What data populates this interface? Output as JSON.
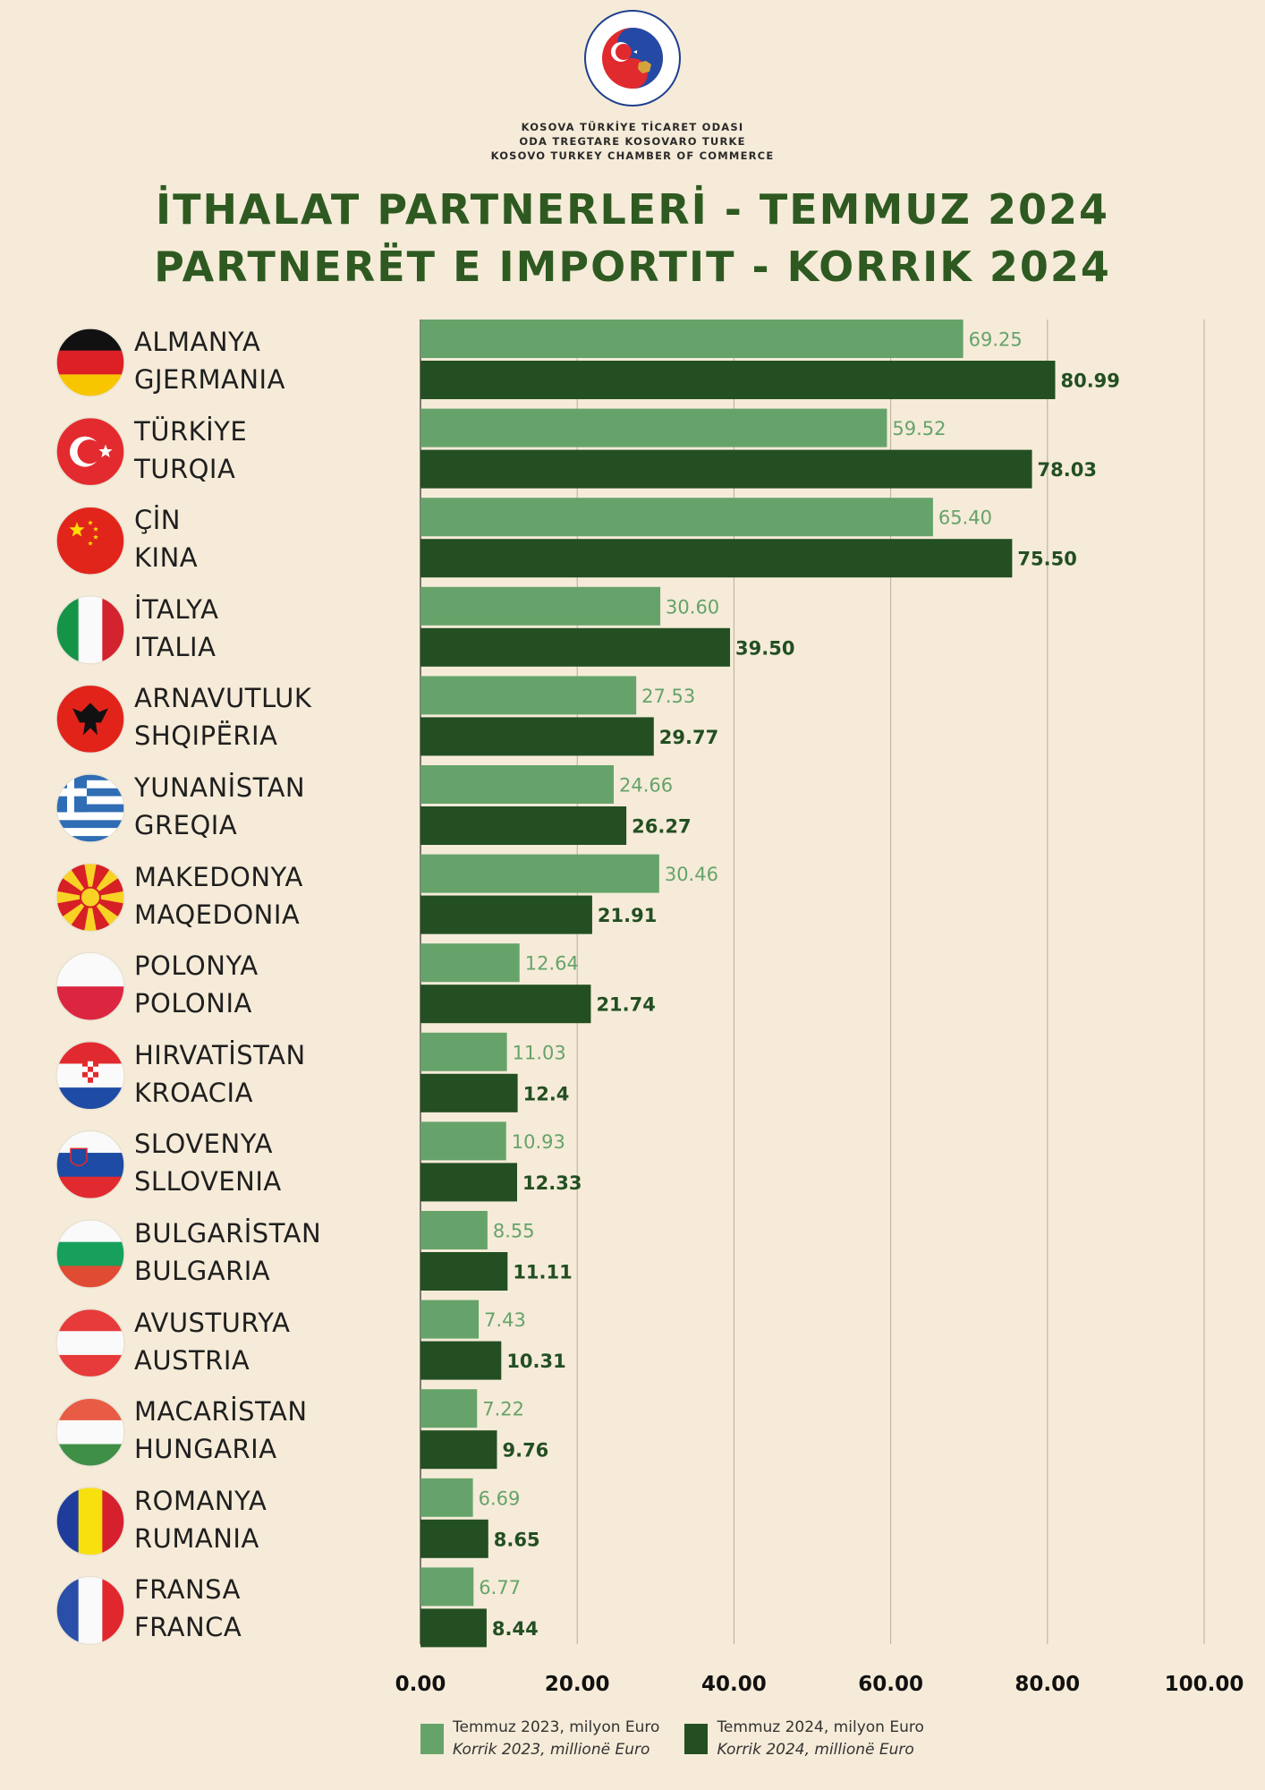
{
  "header": {
    "org_lines": [
      "KOSOVA TÜRKİYE TİCARET ODASI",
      "ODA TREGTARE KOSOVARO TURKE",
      "KOSOVO TURKEY CHAMBER OF COMMERCE"
    ],
    "logo_ring_text": "ODA TREGTARE KOSOVARO TURKE ★ KOSOVA TÜRKİYE TİCARET ODASI",
    "title_line1": "İTHALAT PARTNERLERİ - TEMMUZ 2024",
    "title_line2": "PARTNERËT E IMPORTIT - KORRIK 2024"
  },
  "chart_data": {
    "type": "bar",
    "orientation": "horizontal",
    "categories": [
      [
        "ALMANYA",
        "GJERMANIA"
      ],
      [
        "TÜRKİYE",
        "TURQIA"
      ],
      [
        "ÇİN",
        "KINA"
      ],
      [
        "İTALYA",
        "ITALIA"
      ],
      [
        "ARNAVUTLUK",
        "SHQIPËRIA"
      ],
      [
        "YUNANİSTAN",
        "GREQIA"
      ],
      [
        "MAKEDONYA",
        "MAQEDONIA"
      ],
      [
        "POLONYA",
        "POLONIA"
      ],
      [
        "HIRVATİSTAN",
        "KROACIA"
      ],
      [
        "SLOVENYA",
        "SLLOVENIA"
      ],
      [
        "BULGARİSTAN",
        "BULGARIA"
      ],
      [
        "AVUSTURYA",
        "AUSTRIA"
      ],
      [
        "MACARİSTAN",
        "HUNGARIA"
      ],
      [
        "ROMANYA",
        "RUMANIA"
      ],
      [
        "FRANSA",
        "FRANCA"
      ]
    ],
    "series": [
      {
        "name": [
          "Temmuz  2023, milyon Euro",
          "Korrik 2023, millionë Euro"
        ],
        "color": "#66a36a",
        "values": [
          69.25,
          59.52,
          65.4,
          30.6,
          27.53,
          24.66,
          30.46,
          12.64,
          11.03,
          10.93,
          8.55,
          7.43,
          7.22,
          6.69,
          6.77
        ],
        "labels": [
          "69.25",
          "59.52",
          "65.40",
          "30.60",
          "27.53",
          "24.66",
          "30.46",
          "12.64",
          "11.03",
          "10.93",
          "8.55",
          "7.43",
          "7.22",
          "6.69",
          "6.77"
        ]
      },
      {
        "name": [
          "Temmuz 2024, milyon Euro",
          "Korrik 2024, millionë Euro"
        ],
        "color": "#234f22",
        "values": [
          80.99,
          78.03,
          75.5,
          39.5,
          29.77,
          26.27,
          21.91,
          21.74,
          12.4,
          12.33,
          11.11,
          10.31,
          9.76,
          8.65,
          8.44
        ],
        "labels": [
          "80.99",
          "78.03",
          "75.50",
          "39.50",
          "29.77",
          "26.27",
          "21.91",
          "21.74",
          "12.4",
          "12.33",
          "11.11",
          "10.31",
          "9.76",
          "8.65",
          "8.44"
        ]
      }
    ],
    "xlim": [
      0,
      100
    ],
    "x_ticks": [
      "0.00",
      "20.00",
      "40.00",
      "60.00",
      "80.00",
      "100.00"
    ],
    "grid": "vertical",
    "legend_position": "bottom",
    "flags": [
      "germany-flag",
      "turkey-flag",
      "china-flag",
      "italy-flag",
      "albania-flag",
      "greece-flag",
      "north-macedonia-flag",
      "poland-flag",
      "croatia-flag",
      "slovenia-flag",
      "bulgaria-flag",
      "austria-flag",
      "hungary-flag",
      "romania-flag",
      "france-flag"
    ]
  }
}
